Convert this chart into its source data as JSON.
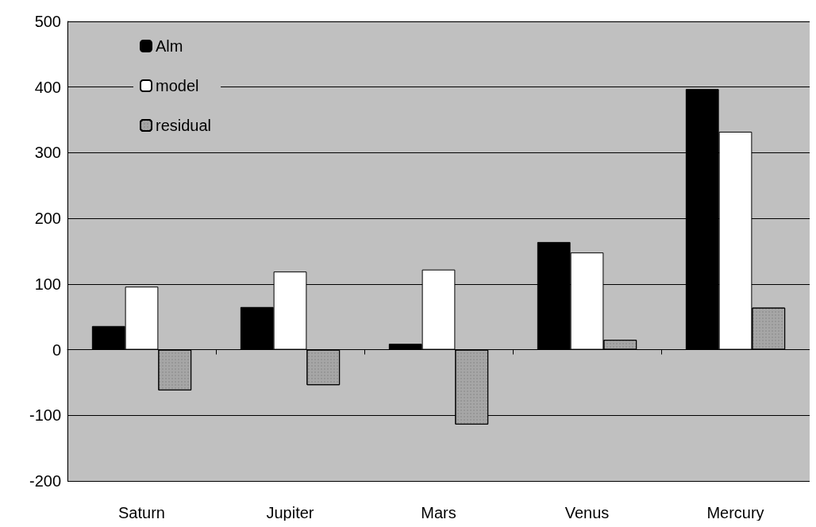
{
  "chart_data": {
    "type": "bar",
    "categories": [
      "Saturn",
      "Jupiter",
      "Mars",
      "Venus",
      "Mercury"
    ],
    "series": [
      {
        "name": "Alm",
        "color": "#000000",
        "values": [
          36,
          65,
          9,
          164,
          397
        ]
      },
      {
        "name": "model",
        "color": "#ffffff",
        "values": [
          96,
          119,
          122,
          148,
          332
        ]
      },
      {
        "name": "residual",
        "color": "#a6a6a6",
        "values": [
          -62,
          -54,
          -114,
          15,
          64
        ]
      }
    ],
    "ylim": [
      -200,
      500
    ],
    "yticks": [
      -200,
      -100,
      0,
      100,
      200,
      300,
      400,
      500
    ],
    "grid": "y",
    "legend": "top left"
  }
}
